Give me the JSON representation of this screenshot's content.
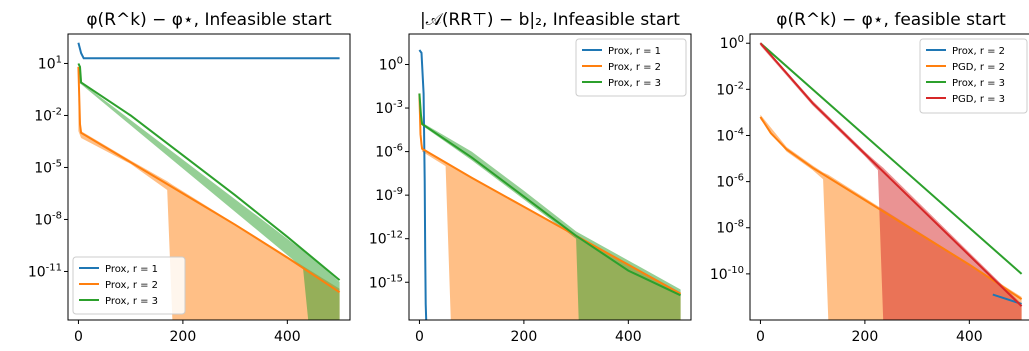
{
  "chart_data": [
    {
      "type": "line",
      "title": "φ(R^k) − φ⋆, Infeasible start",
      "xlabel": "",
      "ylabel": "",
      "y_scale": "log",
      "xlim": [
        -20,
        520
      ],
      "ylim_exp": [
        -13.8,
        2.7
      ],
      "x_ticks": [
        0,
        200,
        400
      ],
      "y_ticks": [
        {
          "exp": 1,
          "label": "10^1"
        },
        {
          "exp": -2,
          "label": "10^-2"
        },
        {
          "exp": -5,
          "label": "10^-5"
        },
        {
          "exp": -8,
          "label": "10^-8"
        },
        {
          "exp": -11,
          "label": "10^-11"
        }
      ],
      "legend": {
        "placement": "bottom-left"
      },
      "series": [
        {
          "name": "Prox, r = 1",
          "color": "#1f77b4",
          "x": [
            0,
            5,
            10,
            500
          ],
          "log10_y": [
            2.2,
            1.6,
            1.3,
            1.3
          ]
        },
        {
          "name": "Prox, r = 2",
          "color": "#ff7f0e",
          "x": [
            0,
            3,
            5,
            100,
            200,
            300,
            400,
            500
          ],
          "log10_y": [
            0.8,
            -2.5,
            -3.0,
            -4.7,
            -6.5,
            -8.3,
            -10.2,
            -12.2
          ],
          "band": {
            "x": [
              0,
              5,
              100,
              170,
              180,
              500
            ],
            "upper": [
              -1.0,
              -2.9,
              -4.6,
              -5.8,
              -6.0,
              -12.0
            ],
            "lower_exp": [
              -2.9,
              -3.3,
              -4.8,
              -6.3,
              -13.8,
              -13.8
            ]
          }
        },
        {
          "name": "Prox, r = 3",
          "color": "#2ca02c",
          "x": [
            0,
            3,
            5,
            100,
            200,
            300,
            400,
            500
          ],
          "log10_y": [
            1.0,
            0.8,
            -0.1,
            -2.0,
            -4.3,
            -6.6,
            -9.0,
            -11.5
          ],
          "band": {
            "x": [
              0,
              5,
              430,
              440,
              500
            ],
            "upper": [
              0.8,
              -0.1,
              -9.8,
              -10.0,
              -11.6
            ],
            "lower_exp": [
              -0.1,
              -0.2,
              -10.8,
              -13.8,
              -13.8
            ]
          }
        }
      ]
    },
    {
      "type": "line",
      "title": "|𝒜(RR⊤) − b|₂, Infeasible start",
      "xlabel": "",
      "ylabel": "",
      "y_scale": "log",
      "xlim": [
        -20,
        520
      ],
      "ylim_exp": [
        -17.6,
        2.1
      ],
      "x_ticks": [
        0,
        200,
        400
      ],
      "y_ticks": [
        {
          "exp": 0,
          "label": "10^0"
        },
        {
          "exp": -3,
          "label": "10^-3"
        },
        {
          "exp": -6,
          "label": "10^-6"
        },
        {
          "exp": -9,
          "label": "10^-9"
        },
        {
          "exp": -12,
          "label": "10^-12"
        },
        {
          "exp": -15,
          "label": "10^-15"
        }
      ],
      "legend": {
        "placement": "top-right"
      },
      "series": [
        {
          "name": "Prox, r = 1",
          "color": "#1f77b4",
          "x": [
            0,
            4,
            8,
            10,
            11,
            12,
            13
          ],
          "log10_y": [
            1.0,
            0.8,
            -2.0,
            -8.0,
            -13.0,
            -16.5,
            -17.6
          ]
        },
        {
          "name": "Prox, r = 2",
          "color": "#ff7f0e",
          "x": [
            0,
            2,
            4,
            5,
            100,
            200,
            300,
            400,
            500
          ],
          "log10_y": [
            -2.0,
            -4.8,
            -5.5,
            -5.8,
            -7.8,
            -9.8,
            -11.8,
            -13.8,
            -15.8
          ],
          "band": {
            "x": [
              5,
              50,
              60,
              500
            ],
            "upper": [
              -5.7,
              -6.8,
              -7.0,
              -15.7
            ],
            "lower_exp": [
              -6.0,
              -7.0,
              -17.6,
              -17.6
            ]
          }
        },
        {
          "name": "Prox, r = 3",
          "color": "#2ca02c",
          "x": [
            0,
            3,
            5,
            100,
            200,
            300,
            400,
            500
          ],
          "log10_y": [
            -2.0,
            -3.5,
            -4.1,
            -6.4,
            -9.1,
            -11.8,
            -14.2,
            -15.9
          ],
          "band": {
            "x": [
              5,
              100,
              200,
              300,
              305,
              500
            ],
            "upper": [
              -4.0,
              -6.0,
              -8.7,
              -11.5,
              -11.6,
              -15.5
            ],
            "lower_exp": [
              -4.2,
              -6.6,
              -9.3,
              -12.0,
              -17.6,
              -17.6
            ]
          }
        }
      ]
    },
    {
      "type": "line",
      "title": "φ(R^k) − φ⋆, feasible start",
      "xlabel": "",
      "ylabel": "",
      "y_scale": "log",
      "xlim": [
        -20,
        520
      ],
      "ylim_exp": [
        -12.0,
        0.4
      ],
      "x_ticks": [
        0,
        200,
        400
      ],
      "y_ticks": [
        {
          "exp": 0,
          "label": "10^0"
        },
        {
          "exp": -2,
          "label": "10^-2"
        },
        {
          "exp": -4,
          "label": "10^-4"
        },
        {
          "exp": -6,
          "label": "10^-6"
        },
        {
          "exp": -8,
          "label": "10^-8"
        },
        {
          "exp": -10,
          "label": "10^-10"
        }
      ],
      "legend": {
        "placement": "top-right"
      },
      "series": [
        {
          "name": "Prox, r = 2",
          "color": "#1f77b4",
          "x": [
            445,
            500
          ],
          "log10_y": [
            -10.9,
            -11.3
          ]
        },
        {
          "name": "PGD, r = 2",
          "color": "#ff7f0e",
          "x": [
            0,
            20,
            50,
            100,
            200,
            300,
            400,
            500
          ],
          "log10_y": [
            -3.2,
            -3.9,
            -4.6,
            -5.4,
            -6.8,
            -8.2,
            -9.6,
            -11.1
          ],
          "band": {
            "x": [
              0,
              50,
              100,
              120,
              130,
              500
            ],
            "upper": [
              -3.1,
              -4.5,
              -5.3,
              -5.6,
              -5.7,
              -11.0
            ],
            "lower_exp": [
              -3.3,
              -4.7,
              -5.5,
              -5.9,
              -12.0,
              -12.0
            ]
          }
        },
        {
          "name": "Prox, r = 3",
          "color": "#2ca02c",
          "x": [
            0,
            500
          ],
          "log10_y": [
            0.0,
            -10.0
          ]
        },
        {
          "name": "PGD, r = 3",
          "color": "#d62728",
          "x": [
            0,
            50,
            100,
            200,
            300,
            400,
            500
          ],
          "log10_y": [
            0.0,
            -1.3,
            -2.6,
            -4.8,
            -7.0,
            -9.2,
            -11.4
          ],
          "band": {
            "x": [
              0,
              100,
              200,
              225,
              235,
              500
            ],
            "upper": [
              0.05,
              -2.5,
              -4.7,
              -5.2,
              -5.4,
              -11.3
            ],
            "lower_exp": [
              -0.1,
              -2.7,
              -4.9,
              -5.5,
              -12.0,
              -12.0
            ]
          }
        }
      ]
    }
  ]
}
